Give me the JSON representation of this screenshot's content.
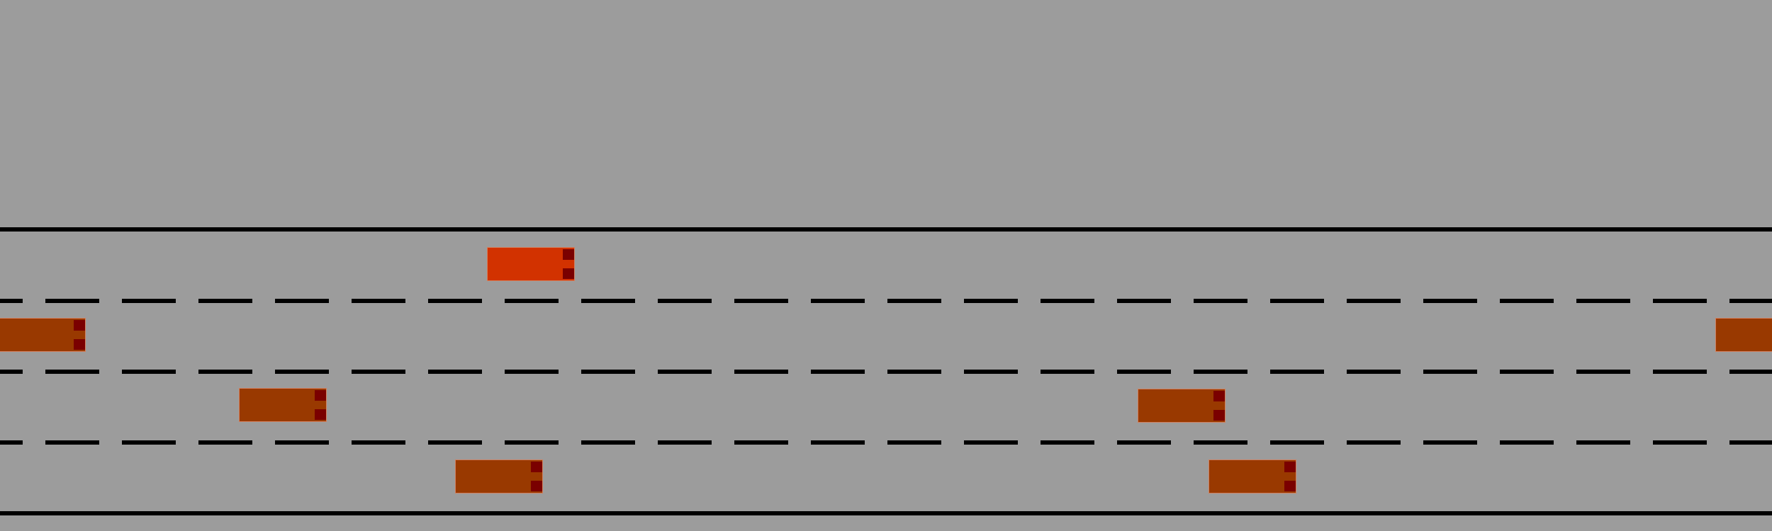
{
  "game": {
    "player_car": {
      "color": "#d23200",
      "lane": 1
    },
    "npc_car_color": "#993900",
    "tail_light_color": "#7a0000",
    "background_color": "#9c9c9c",
    "road_line_color": "#000000",
    "lanes": 4
  }
}
